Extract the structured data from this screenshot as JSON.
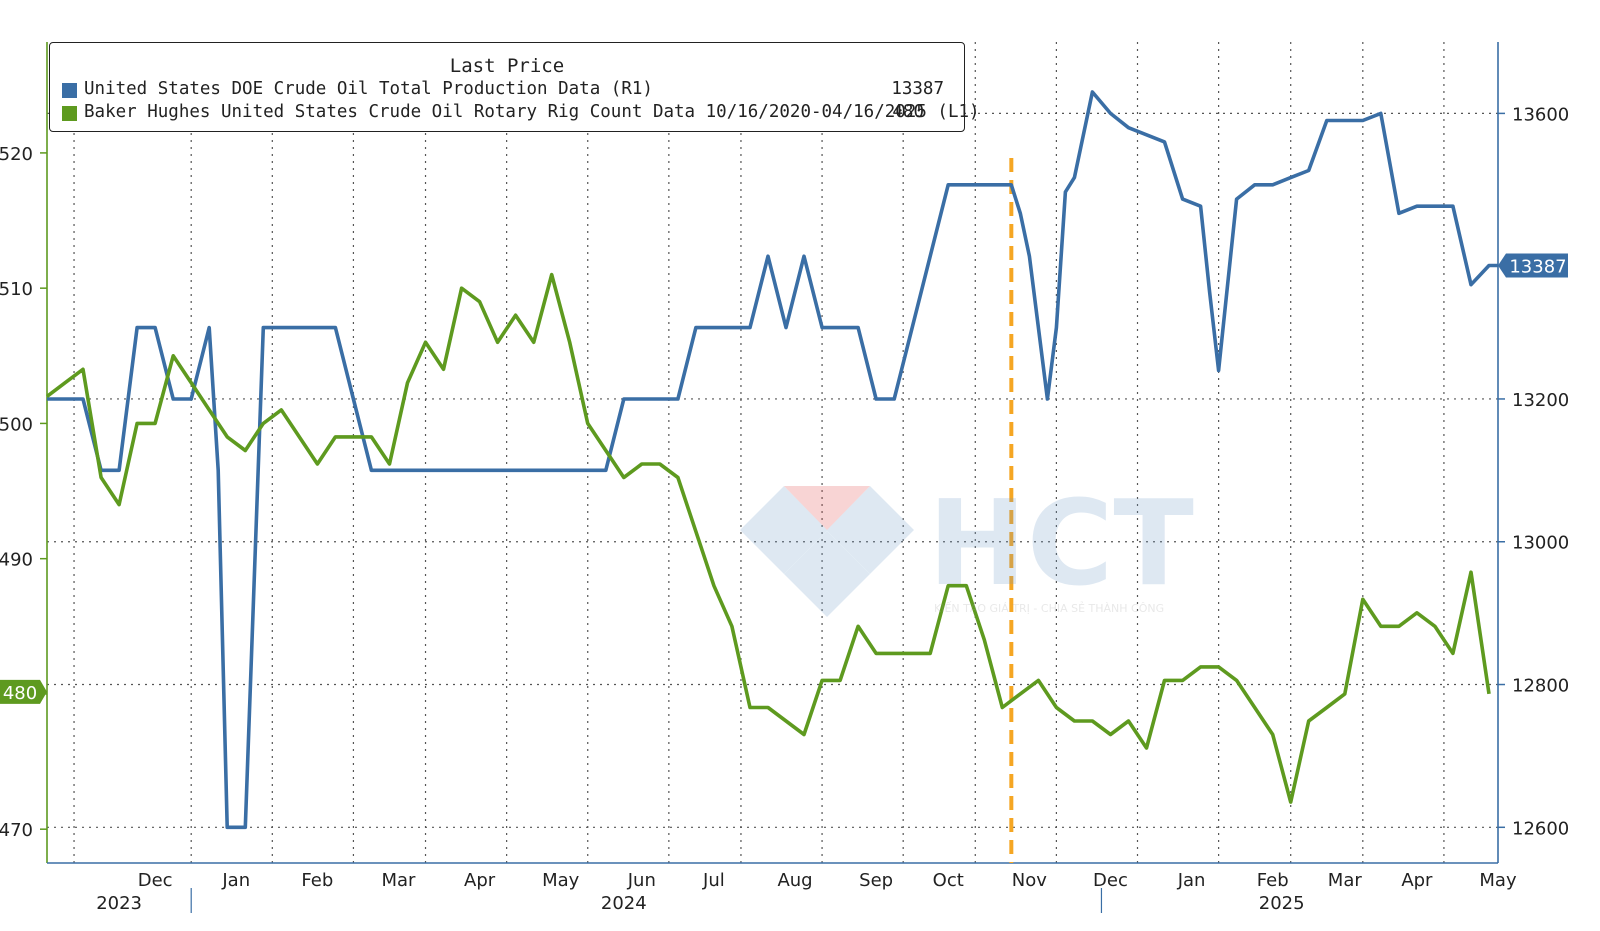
{
  "chart_data": {
    "type": "line",
    "legend": {
      "title": "Last Price",
      "entries": [
        {
          "series": "us_production",
          "label": "United States DOE Crude Oil Total Production Data  (R1)",
          "value": "13387"
        },
        {
          "series": "rig_count",
          "label": "Baker Hughes United States Crude Oil Rotary Rig Count Data 10/16/2020-04/16/2025  (L1)",
          "value": "480"
        }
      ],
      "placement": "top-left"
    },
    "left_axis": {
      "ticks": [
        470,
        480,
        490,
        500,
        510,
        520
      ],
      "ylim": [
        467.5,
        528.2
      ]
    },
    "right_axis": {
      "ticks": [
        12600,
        12800,
        13000,
        13200,
        13600
      ],
      "ylim": [
        12550,
        13700
      ]
    },
    "x_axis": {
      "months": [
        {
          "label": "Dec",
          "week": 6
        },
        {
          "label": "Jan",
          "week": 10.5
        },
        {
          "label": "Feb",
          "week": 15
        },
        {
          "label": "Mar",
          "week": 19.5
        },
        {
          "label": "Apr",
          "week": 24
        },
        {
          "label": "May",
          "week": 28.5
        },
        {
          "label": "Jun",
          "week": 33
        },
        {
          "label": "Jul",
          "week": 37
        },
        {
          "label": "Aug",
          "week": 41.5
        },
        {
          "label": "Sep",
          "week": 46
        },
        {
          "label": "Oct",
          "week": 50
        },
        {
          "label": "Nov",
          "week": 54.5
        },
        {
          "label": "Dec",
          "week": 59
        },
        {
          "label": "Jan",
          "week": 63.5
        },
        {
          "label": "Feb",
          "week": 68
        },
        {
          "label": "Mar",
          "week": 72
        },
        {
          "label": "Apr",
          "week": 76
        },
        {
          "label": "May",
          "week": 80.5
        }
      ],
      "years": [
        {
          "label": "2023",
          "week": 4
        },
        {
          "label": "2024",
          "week": 32
        },
        {
          "label": "2025",
          "week": 68.5
        }
      ],
      "year_dividers": [
        8,
        58.5
      ],
      "vertical_gridlines": [
        1.5,
        8,
        12.5,
        17,
        21,
        25.5,
        30,
        34.5,
        38.5,
        43,
        47.5,
        51.5,
        56,
        60.5,
        65,
        69,
        73,
        77.5
      ],
      "xlim": [
        0,
        80.5
      ]
    },
    "series": [
      {
        "id": "us_production",
        "axis": "right",
        "color": "#3a6ea5",
        "points": [
          [
            0,
            13200
          ],
          [
            1,
            13200
          ],
          [
            2,
            13200
          ],
          [
            3,
            13100
          ],
          [
            4,
            13100
          ],
          [
            5,
            13300
          ],
          [
            6,
            13300
          ],
          [
            7,
            13200
          ],
          [
            8,
            13200
          ],
          [
            9,
            13300
          ],
          [
            9.5,
            13100
          ],
          [
            10,
            12600
          ],
          [
            10.5,
            12600
          ],
          [
            11,
            12600
          ],
          [
            12,
            13300
          ],
          [
            13,
            13300
          ],
          [
            14,
            13300
          ],
          [
            15,
            13300
          ],
          [
            16,
            13300
          ],
          [
            17,
            13200
          ],
          [
            18,
            13100
          ],
          [
            19,
            13100
          ],
          [
            20,
            13100
          ],
          [
            21,
            13100
          ],
          [
            22,
            13100
          ],
          [
            23,
            13100
          ],
          [
            24,
            13100
          ],
          [
            25,
            13100
          ],
          [
            26,
            13100
          ],
          [
            27,
            13100
          ],
          [
            28,
            13100
          ],
          [
            29,
            13100
          ],
          [
            30,
            13100
          ],
          [
            31,
            13100
          ],
          [
            32,
            13200
          ],
          [
            33,
            13200
          ],
          [
            34,
            13200
          ],
          [
            35,
            13200
          ],
          [
            36,
            13300
          ],
          [
            37,
            13300
          ],
          [
            38,
            13300
          ],
          [
            39,
            13300
          ],
          [
            40,
            13400
          ],
          [
            41,
            13300
          ],
          [
            42,
            13400
          ],
          [
            43,
            13300
          ],
          [
            44,
            13300
          ],
          [
            45,
            13300
          ],
          [
            46,
            13200
          ],
          [
            47,
            13200
          ],
          [
            48,
            13300
          ],
          [
            49,
            13400
          ],
          [
            50,
            13500
          ],
          [
            51,
            13500
          ],
          [
            52,
            13500
          ],
          [
            53,
            13500
          ],
          [
            53.5,
            13500
          ],
          [
            54,
            13460
          ],
          [
            54.5,
            13400
          ],
          [
            55,
            13300
          ],
          [
            55.5,
            13200
          ],
          [
            56,
            13300
          ],
          [
            56.5,
            13490
          ],
          [
            57,
            13510
          ],
          [
            58,
            13630
          ],
          [
            59,
            13600
          ],
          [
            60,
            13580
          ],
          [
            61,
            13570
          ],
          [
            62,
            13560
          ],
          [
            63,
            13480
          ],
          [
            64,
            13470
          ],
          [
            64.5,
            13350
          ],
          [
            65,
            13240
          ],
          [
            66,
            13480
          ],
          [
            67,
            13500
          ],
          [
            68,
            13500
          ],
          [
            69,
            13510
          ],
          [
            70,
            13520
          ],
          [
            71,
            13590
          ],
          [
            72,
            13590
          ],
          [
            73,
            13590
          ],
          [
            74,
            13600
          ],
          [
            75,
            13460
          ],
          [
            76,
            13470
          ],
          [
            77,
            13470
          ],
          [
            78,
            13470
          ],
          [
            79,
            13360
          ],
          [
            80,
            13387
          ],
          [
            80.5,
            13387
          ]
        ]
      },
      {
        "id": "rig_count",
        "axis": "left",
        "color": "#5e9a1f",
        "points": [
          [
            0,
            502
          ],
          [
            1,
            503
          ],
          [
            2,
            504
          ],
          [
            3,
            496
          ],
          [
            4,
            494
          ],
          [
            5,
            500
          ],
          [
            6,
            500
          ],
          [
            7,
            505
          ],
          [
            8,
            503
          ],
          [
            9,
            501
          ],
          [
            10,
            499
          ],
          [
            11,
            498
          ],
          [
            12,
            500
          ],
          [
            13,
            501
          ],
          [
            14,
            499
          ],
          [
            15,
            497
          ],
          [
            16,
            499
          ],
          [
            17,
            499
          ],
          [
            18,
            499
          ],
          [
            19,
            497
          ],
          [
            20,
            503
          ],
          [
            21,
            506
          ],
          [
            22,
            504
          ],
          [
            23,
            510
          ],
          [
            24,
            509
          ],
          [
            25,
            506
          ],
          [
            26,
            508
          ],
          [
            27,
            506
          ],
          [
            28,
            511
          ],
          [
            29,
            506
          ],
          [
            30,
            500
          ],
          [
            31,
            498
          ],
          [
            32,
            496
          ],
          [
            33,
            497
          ],
          [
            34,
            497
          ],
          [
            35,
            496
          ],
          [
            36,
            492
          ],
          [
            37,
            488
          ],
          [
            38,
            485
          ],
          [
            39,
            479
          ],
          [
            40,
            479
          ],
          [
            41,
            478
          ],
          [
            42,
            477
          ],
          [
            43,
            481
          ],
          [
            44,
            481
          ],
          [
            45,
            485
          ],
          [
            46,
            483
          ],
          [
            47,
            483
          ],
          [
            48,
            483
          ],
          [
            49,
            483
          ],
          [
            50,
            488
          ],
          [
            51,
            488
          ],
          [
            52,
            484
          ],
          [
            53,
            479
          ],
          [
            54,
            480
          ],
          [
            55,
            481
          ],
          [
            56,
            479
          ],
          [
            57,
            478
          ],
          [
            58,
            478
          ],
          [
            59,
            477
          ],
          [
            60,
            478
          ],
          [
            61,
            476
          ],
          [
            62,
            481
          ],
          [
            63,
            481
          ],
          [
            64,
            482
          ],
          [
            65,
            482
          ],
          [
            66,
            481
          ],
          [
            67,
            479
          ],
          [
            68,
            477
          ],
          [
            69,
            472
          ],
          [
            70,
            478
          ],
          [
            71,
            479
          ],
          [
            72,
            480
          ],
          [
            73,
            487
          ],
          [
            74,
            485
          ],
          [
            75,
            485
          ],
          [
            76,
            486
          ],
          [
            77,
            485
          ],
          [
            78,
            483
          ],
          [
            79,
            489
          ],
          [
            80,
            480
          ]
        ]
      }
    ],
    "annotations": {
      "left_current_label": "480",
      "right_current_label": "13387",
      "event_marker": {
        "type": "vertical dashed line",
        "color": "#f5a623",
        "week": 53.5
      }
    }
  },
  "watermark": {
    "text": "HCT",
    "tagline": "KIẾN TẠO GIÁ TRỊ - CHIA SẺ THÀNH CÔNG"
  }
}
